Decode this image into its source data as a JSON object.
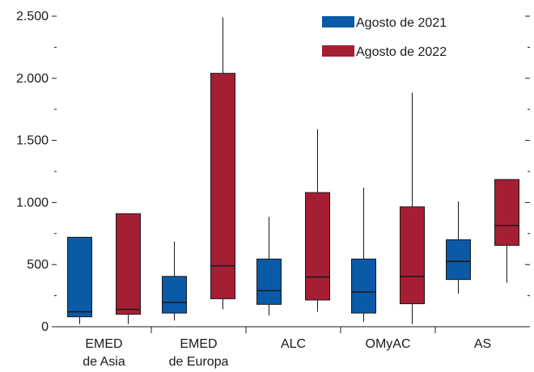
{
  "chart_data": {
    "type": "box",
    "title": "",
    "xlabel": "",
    "ylabel": "",
    "ylim": [
      0,
      2500
    ],
    "y_ticks": [
      0,
      500,
      1000,
      1500,
      2000,
      2500
    ],
    "y_tick_labels": [
      "0",
      "500",
      "1.000",
      "1.500",
      "2.000",
      "2.500"
    ],
    "y_minor_ticks": [
      250,
      750,
      1250,
      1750,
      2250
    ],
    "grid": false,
    "legend_position": "top-right",
    "categories": [
      [
        "EMED",
        "de Asia"
      ],
      [
        "EMED",
        "de Europa"
      ],
      [
        "ALC"
      ],
      [
        "OMyAC"
      ],
      [
        "AS"
      ]
    ],
    "series": [
      {
        "name": "Agosto de 2021",
        "color": "#0b5aa8",
        "boxes": [
          {
            "min": 20,
            "q1": 80,
            "median": 120,
            "q3": 720,
            "max": 720
          },
          {
            "min": 50,
            "q1": 110,
            "median": 195,
            "q3": 405,
            "max": 685
          },
          {
            "min": 90,
            "q1": 180,
            "median": 290,
            "q3": 545,
            "max": 885
          },
          {
            "min": 40,
            "q1": 110,
            "median": 280,
            "q3": 545,
            "max": 1120
          },
          {
            "min": 265,
            "q1": 380,
            "median": 525,
            "q3": 700,
            "max": 1010
          }
        ]
      },
      {
        "name": "Agosto de 2022",
        "color": "#a61e34",
        "boxes": [
          {
            "min": 20,
            "q1": 100,
            "median": 140,
            "q3": 910,
            "max": 910
          },
          {
            "min": 140,
            "q1": 225,
            "median": 490,
            "q3": 2040,
            "max": 2490
          },
          {
            "min": 120,
            "q1": 215,
            "median": 400,
            "q3": 1080,
            "max": 1590
          },
          {
            "min": 20,
            "q1": 185,
            "median": 405,
            "q3": 965,
            "max": 1885
          },
          {
            "min": 355,
            "q1": 655,
            "median": 815,
            "q3": 1185,
            "max": 1185
          }
        ]
      }
    ]
  }
}
